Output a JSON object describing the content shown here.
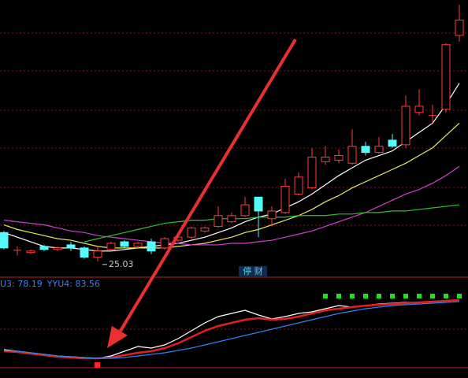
{
  "chart_data": [
    {
      "type": "candlestick",
      "caption": "停 财",
      "categories": [
        null,
        null,
        null,
        null,
        null,
        null,
        null,
        null,
        null,
        null,
        null,
        null,
        null,
        null,
        null,
        null,
        null,
        null,
        null,
        null,
        null,
        null,
        null,
        null,
        null,
        null,
        null,
        null,
        null,
        null,
        null,
        null,
        null,
        null,
        null
      ],
      "open": [
        26.9,
        25.75,
        25.6,
        26.0,
        25.8,
        26.1,
        25.9,
        25.3,
        25.8,
        26.3,
        26.0,
        26.3,
        25.9,
        26.4,
        26.6,
        27.0,
        27.3,
        27.6,
        28.0,
        29.2,
        27.8,
        28.2,
        29.4,
        29.8,
        31.5,
        31.6,
        31.4,
        32.5,
        32.1,
        32.9,
        32.6,
        34.7,
        34.5,
        34.9,
        39.7
      ],
      "high": [
        27.0,
        26.0,
        25.8,
        26.1,
        26.0,
        26.3,
        26.0,
        26.0,
        26.3,
        26.4,
        26.3,
        26.5,
        26.6,
        26.9,
        27.3,
        27.3,
        28.6,
        28.2,
        29.2,
        29.2,
        28.6,
        30.4,
        30.8,
        32.4,
        32.5,
        32.3,
        33.6,
        32.8,
        33.1,
        33.3,
        35.8,
        36.2,
        35.2,
        39.2,
        41.7
      ],
      "low": [
        25.8,
        25.4,
        25.5,
        25.7,
        25.7,
        25.7,
        25.2,
        25.03,
        25.7,
        25.9,
        25.9,
        25.5,
        25.8,
        26.3,
        26.5,
        26.9,
        27.2,
        27.5,
        27.9,
        26.6,
        27.3,
        28.1,
        29.3,
        29.7,
        31.3,
        31.4,
        31.3,
        31.9,
        32.0,
        32.4,
        32.4,
        34.5,
        34.0,
        34.7,
        39.3
      ],
      "close": [
        25.9,
        25.75,
        25.7,
        25.8,
        25.9,
        25.9,
        25.3,
        25.7,
        26.2,
        26.0,
        26.2,
        25.7,
        26.5,
        26.6,
        27.2,
        27.2,
        28.0,
        28.0,
        28.7,
        28.3,
        28.3,
        29.9,
        30.5,
        31.8,
        31.8,
        31.9,
        32.5,
        32.1,
        32.5,
        32.5,
        35.1,
        35.1,
        34.5,
        39.1,
        40.7
      ],
      "up_color": "#ff3c3c",
      "down_color": "#54fcfc",
      "series": [
        {
          "color": "#ffffff",
          "values": [
            26.9,
            26.6,
            26.3,
            26.0,
            25.9,
            25.9,
            25.8,
            25.7,
            25.7,
            25.8,
            25.9,
            26.0,
            26.1,
            26.2,
            26.4,
            26.6,
            26.9,
            27.2,
            27.6,
            27.9,
            28.1,
            28.5,
            28.9,
            29.4,
            30.0,
            30.6,
            31.1,
            31.6,
            31.9,
            32.2,
            32.8,
            33.4,
            34.0,
            35.2,
            36.6
          ]
        },
        {
          "color": "#e8e860",
          "values": [
            27.4,
            27.1,
            26.9,
            26.7,
            26.5,
            26.4,
            26.2,
            26.0,
            25.9,
            25.9,
            25.9,
            25.9,
            25.9,
            26.0,
            26.1,
            26.2,
            26.4,
            26.6,
            26.9,
            27.1,
            27.4,
            27.7,
            28.0,
            28.4,
            28.9,
            29.3,
            29.8,
            30.2,
            30.6,
            31.0,
            31.4,
            31.9,
            32.4,
            33.2,
            34.0
          ]
        },
        {
          "color": "#d040d0",
          "values": [
            27.7,
            27.6,
            27.5,
            27.4,
            27.2,
            27.0,
            26.9,
            26.7,
            26.6,
            26.5,
            26.4,
            26.3,
            26.2,
            26.2,
            26.1,
            26.1,
            26.1,
            26.2,
            26.2,
            26.3,
            26.4,
            26.6,
            26.8,
            27.0,
            27.3,
            27.6,
            27.9,
            28.2,
            28.6,
            29.0,
            29.4,
            29.7,
            30.1,
            30.6,
            31.2
          ]
        },
        {
          "color": "#30c030",
          "values": [
            null,
            null,
            null,
            null,
            null,
            null,
            26.3,
            26.5,
            26.7,
            26.9,
            27.1,
            27.3,
            27.5,
            27.6,
            27.7,
            27.7,
            27.8,
            27.8,
            27.8,
            27.9,
            27.9,
            27.9,
            28.0,
            28.0,
            28.0,
            28.1,
            28.1,
            28.2,
            28.2,
            28.3,
            28.3,
            28.4,
            28.5,
            28.6,
            28.7
          ]
        }
      ],
      "ylim": [
        24,
        42
      ]
    },
    {
      "type": "line",
      "readouts": [
        "U3: 78.19",
        "YYU4: 83.56"
      ],
      "readout_color": "#3a7ff0",
      "categories": [
        null,
        null,
        null,
        null,
        null,
        null,
        null,
        null,
        null,
        null,
        null,
        null,
        null,
        null,
        null,
        null,
        null,
        null,
        null,
        null,
        null,
        null,
        null,
        null,
        null,
        null,
        null,
        null,
        null,
        null,
        null,
        null,
        null,
        null,
        null
      ],
      "series": [
        {
          "color": "#ffffff",
          "values": [
            16,
            14,
            12,
            10,
            8,
            7,
            6,
            5,
            8,
            14,
            20,
            18,
            22,
            30,
            40,
            50,
            58,
            62,
            66,
            60,
            55,
            58,
            62,
            64,
            68,
            72,
            70,
            72,
            74,
            75,
            76,
            76,
            77,
            78,
            79
          ]
        },
        {
          "color": "#e02020",
          "values": [
            14,
            13,
            11,
            9,
            7,
            6,
            5,
            5,
            6,
            9,
            12,
            14,
            18,
            24,
            32,
            40,
            46,
            50,
            54,
            56,
            54,
            55,
            58,
            62,
            66,
            68,
            70,
            72,
            73,
            74,
            75,
            76,
            77,
            78,
            79
          ]
        },
        {
          "color": "#3080f0",
          "values": [
            15,
            14,
            12,
            10,
            8,
            7,
            6,
            5,
            5,
            6,
            8,
            10,
            12,
            15,
            18,
            22,
            26,
            30,
            34,
            38,
            42,
            46,
            50,
            54,
            58,
            62,
            65,
            68,
            70,
            72,
            73,
            74,
            75,
            76,
            77
          ]
        },
        {
          "color": "#20e020",
          "markers": true,
          "values": [
            null,
            null,
            null,
            null,
            null,
            null,
            null,
            null,
            null,
            null,
            null,
            null,
            null,
            null,
            null,
            null,
            null,
            null,
            null,
            null,
            null,
            null,
            null,
            null,
            84,
            84,
            84,
            84,
            84,
            84,
            84,
            84,
            84,
            84,
            84
          ]
        }
      ],
      "ylim": [
        0,
        100
      ]
    }
  ]
}
